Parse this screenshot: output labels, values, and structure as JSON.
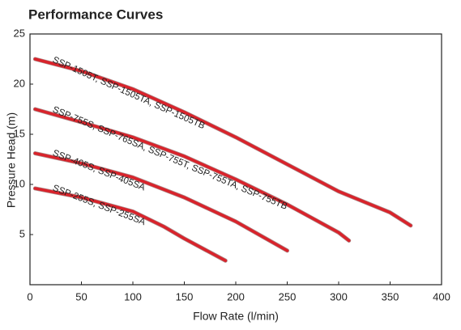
{
  "chart_data": {
    "type": "line",
    "title": "Performance Curves",
    "x_label": "Flow Rate (l/min)",
    "y_label": "Pressure Head (m)",
    "xlim": [
      0,
      400
    ],
    "xticks": [
      0,
      50,
      100,
      150,
      200,
      250,
      300,
      350,
      400
    ],
    "ylim": [
      0,
      25
    ],
    "yticks": [
      5,
      10,
      15,
      20,
      25
    ],
    "grid": false,
    "series": [
      {
        "name": "SSP-1505T, SSP-1505TA, SSP-1505TB",
        "color": "#d9232b",
        "x": [
          5,
          50,
          100,
          150,
          200,
          250,
          300,
          350,
          370
        ],
        "values": [
          22.5,
          21.3,
          19.5,
          17.2,
          14.7,
          12,
          9.3,
          7.2,
          5.9
        ]
      },
      {
        "name": "SSP-755S, SSP-765SA, SSP-755T, SSP-755TA, SSP-755TB",
        "color": "#d9232b",
        "x": [
          5,
          50,
          100,
          150,
          200,
          250,
          300,
          310
        ],
        "values": [
          17.5,
          16.2,
          14.7,
          12.8,
          10.5,
          8,
          5.2,
          4.4
        ]
      },
      {
        "name": "SSP-405S, SSP-405SA",
        "color": "#d9232b",
        "x": [
          5,
          50,
          100,
          150,
          200,
          250
        ],
        "values": [
          13.1,
          12.1,
          10.7,
          8.7,
          6.3,
          3.4
        ]
      },
      {
        "name": "SSP-255S, SSP-255SA",
        "color": "#d9232b",
        "x": [
          5,
          50,
          100,
          130,
          150,
          190
        ],
        "values": [
          9.6,
          8.7,
          7.3,
          5.8,
          4.6,
          2.4
        ]
      }
    ]
  }
}
